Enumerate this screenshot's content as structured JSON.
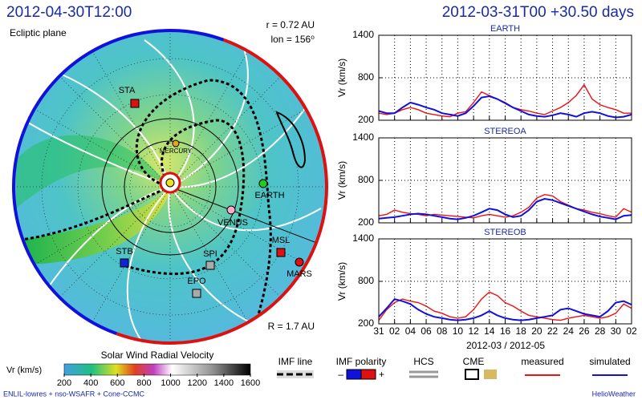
{
  "header": {
    "left_title": "2012-04-30T12:00",
    "right_title": "2012-03-31T00 +30.50 days"
  },
  "map": {
    "label": "Ecliptic plane",
    "radius": "r = 0.72 AU",
    "lon": "lon = 156⁰",
    "range": "R = 1.7 AU",
    "bodies": [
      {
        "label": "STA",
        "color": "#dd1111",
        "shape": "square"
      },
      {
        "label": "MERCURY",
        "color": "#f0a020",
        "shape": "circle"
      },
      {
        "label": "EARTH",
        "color": "#22cc22",
        "shape": "circle"
      },
      {
        "label": "VENUS",
        "color": "#ffaacc",
        "shape": "circle"
      },
      {
        "label": "MSL",
        "color": "#dd1111",
        "shape": "square"
      },
      {
        "label": "MARS",
        "color": "#dd1111",
        "shape": "circle"
      },
      {
        "label": "STB",
        "color": "#1122dd",
        "shape": "square"
      },
      {
        "label": "SPI",
        "color": "#aaaaaa",
        "shape": "square"
      },
      {
        "label": "EPO",
        "color": "#aaaaaa",
        "shape": "square"
      }
    ]
  },
  "chart_data": [
    {
      "type": "line",
      "title": "EARTH",
      "y_label": "Vr (km/s)",
      "x": [
        "2012-03-31",
        "2012-04-01",
        "2012-04-02",
        "2012-04-03",
        "2012-04-04",
        "2012-04-05",
        "2012-04-06",
        "2012-04-07",
        "2012-04-08",
        "2012-04-09",
        "2012-04-10",
        "2012-04-11",
        "2012-04-12",
        "2012-04-13",
        "2012-04-14",
        "2012-04-15",
        "2012-04-16",
        "2012-04-17",
        "2012-04-18",
        "2012-04-19",
        "2012-04-20",
        "2012-04-21",
        "2012-04-22",
        "2012-04-23",
        "2012-04-24",
        "2012-04-25",
        "2012-04-26",
        "2012-04-27",
        "2012-04-28",
        "2012-04-29",
        "2012-04-30",
        "2012-05-01",
        "2012-05-02"
      ],
      "xlim": [
        "2012-03-31",
        "2012-05-02"
      ],
      "xticks": [
        {
          "value": "2012-03-31",
          "label": "31"
        },
        {
          "value": "2012-04-02",
          "label": "02"
        },
        {
          "value": "2012-04-04",
          "label": "04"
        },
        {
          "value": "2012-04-06",
          "label": "06"
        },
        {
          "value": "2012-04-08",
          "label": "08"
        },
        {
          "value": "2012-04-10",
          "label": "10"
        },
        {
          "value": "2012-04-12",
          "label": "12"
        },
        {
          "value": "2012-04-14",
          "label": "14"
        },
        {
          "value": "2012-04-16",
          "label": "16"
        },
        {
          "value": "2012-04-18",
          "label": "18"
        },
        {
          "value": "2012-04-20",
          "label": "20"
        },
        {
          "value": "2012-04-22",
          "label": "22"
        },
        {
          "value": "2012-04-24",
          "label": "24"
        },
        {
          "value": "2012-04-26",
          "label": "26"
        },
        {
          "value": "2012-04-28",
          "label": "28"
        },
        {
          "value": "2012-04-30",
          "label": "30"
        },
        {
          "value": "2012-05-02",
          "label": "02"
        }
      ],
      "ylim": [
        200,
        1400
      ],
      "yticks": [
        200,
        800,
        1400
      ],
      "grid": true,
      "series": [
        {
          "name": "measured",
          "color": "#ee1111",
          "values": [
            300,
            280,
            300,
            350,
            380,
            350,
            300,
            280,
            260,
            250,
            300,
            320,
            450,
            600,
            550,
            500,
            450,
            380,
            350,
            330,
            300,
            280,
            330,
            380,
            450,
            550,
            700,
            500,
            420,
            380,
            350,
            300,
            300
          ]
        },
        {
          "name": "simulated",
          "color": "#1111dd",
          "values": [
            330,
            300,
            300,
            380,
            450,
            420,
            380,
            350,
            300,
            280,
            260,
            300,
            400,
            520,
            540,
            500,
            440,
            380,
            330,
            280,
            260,
            250,
            270,
            300,
            280,
            250,
            300,
            320,
            300,
            260,
            240,
            250,
            280
          ]
        }
      ]
    },
    {
      "type": "line",
      "title": "STEREOA",
      "y_label": "Vr (km/s)",
      "x": [
        "2012-03-31",
        "2012-04-01",
        "2012-04-02",
        "2012-04-03",
        "2012-04-04",
        "2012-04-05",
        "2012-04-06",
        "2012-04-07",
        "2012-04-08",
        "2012-04-09",
        "2012-04-10",
        "2012-04-11",
        "2012-04-12",
        "2012-04-13",
        "2012-04-14",
        "2012-04-15",
        "2012-04-16",
        "2012-04-17",
        "2012-04-18",
        "2012-04-19",
        "2012-04-20",
        "2012-04-21",
        "2012-04-22",
        "2012-04-23",
        "2012-04-24",
        "2012-04-25",
        "2012-04-26",
        "2012-04-27",
        "2012-04-28",
        "2012-04-29",
        "2012-04-30",
        "2012-05-01",
        "2012-05-02"
      ],
      "xlim": [
        "2012-03-31",
        "2012-05-02"
      ],
      "xticks": [
        {
          "value": "2012-03-31",
          "label": "31"
        },
        {
          "value": "2012-04-02",
          "label": "02"
        },
        {
          "value": "2012-04-04",
          "label": "04"
        },
        {
          "value": "2012-04-06",
          "label": "06"
        },
        {
          "value": "2012-04-08",
          "label": "08"
        },
        {
          "value": "2012-04-10",
          "label": "10"
        },
        {
          "value": "2012-04-12",
          "label": "12"
        },
        {
          "value": "2012-04-14",
          "label": "14"
        },
        {
          "value": "2012-04-16",
          "label": "16"
        },
        {
          "value": "2012-04-18",
          "label": "18"
        },
        {
          "value": "2012-04-20",
          "label": "20"
        },
        {
          "value": "2012-04-22",
          "label": "22"
        },
        {
          "value": "2012-04-24",
          "label": "24"
        },
        {
          "value": "2012-04-26",
          "label": "26"
        },
        {
          "value": "2012-04-28",
          "label": "28"
        },
        {
          "value": "2012-04-30",
          "label": "30"
        },
        {
          "value": "2012-05-02",
          "label": "02"
        }
      ],
      "ylim": [
        200,
        1400
      ],
      "yticks": [
        200,
        800,
        1400
      ],
      "grid": true,
      "series": [
        {
          "name": "measured",
          "color": "#ee1111",
          "values": [
            300,
            320,
            380,
            350,
            330,
            320,
            300,
            320,
            310,
            300,
            290,
            280,
            270,
            300,
            320,
            300,
            280,
            300,
            350,
            420,
            550,
            600,
            580,
            500,
            450,
            400,
            380,
            350,
            330,
            300,
            280,
            400,
            350
          ]
        },
        {
          "name": "simulated",
          "color": "#1111dd",
          "values": [
            260,
            270,
            280,
            300,
            320,
            330,
            320,
            300,
            280,
            260,
            250,
            270,
            300,
            350,
            400,
            380,
            320,
            280,
            300,
            380,
            500,
            540,
            520,
            480,
            440,
            400,
            360,
            320,
            290,
            270,
            250,
            300,
            310
          ]
        }
      ]
    },
    {
      "type": "line",
      "title": "STEREOB",
      "y_label": "Vr (km/s)",
      "x": [
        "2012-03-31",
        "2012-04-01",
        "2012-04-02",
        "2012-04-03",
        "2012-04-04",
        "2012-04-05",
        "2012-04-06",
        "2012-04-07",
        "2012-04-08",
        "2012-04-09",
        "2012-04-10",
        "2012-04-11",
        "2012-04-12",
        "2012-04-13",
        "2012-04-14",
        "2012-04-15",
        "2012-04-16",
        "2012-04-17",
        "2012-04-18",
        "2012-04-19",
        "2012-04-20",
        "2012-04-21",
        "2012-04-22",
        "2012-04-23",
        "2012-04-24",
        "2012-04-25",
        "2012-04-26",
        "2012-04-27",
        "2012-04-28",
        "2012-04-29",
        "2012-04-30",
        "2012-05-01",
        "2012-05-02"
      ],
      "xlim": [
        "2012-03-31",
        "2012-05-02"
      ],
      "xticks": [
        {
          "value": "2012-03-31",
          "label": "31"
        },
        {
          "value": "2012-04-02",
          "label": "02"
        },
        {
          "value": "2012-04-04",
          "label": "04"
        },
        {
          "value": "2012-04-06",
          "label": "06"
        },
        {
          "value": "2012-04-08",
          "label": "08"
        },
        {
          "value": "2012-04-10",
          "label": "10"
        },
        {
          "value": "2012-04-12",
          "label": "12"
        },
        {
          "value": "2012-04-14",
          "label": "14"
        },
        {
          "value": "2012-04-16",
          "label": "16"
        },
        {
          "value": "2012-04-18",
          "label": "18"
        },
        {
          "value": "2012-04-20",
          "label": "20"
        },
        {
          "value": "2012-04-22",
          "label": "22"
        },
        {
          "value": "2012-04-24",
          "label": "24"
        },
        {
          "value": "2012-04-26",
          "label": "26"
        },
        {
          "value": "2012-04-28",
          "label": "28"
        },
        {
          "value": "2012-04-30",
          "label": "30"
        },
        {
          "value": "2012-05-02",
          "label": "02"
        }
      ],
      "ylim": [
        200,
        1400
      ],
      "yticks": [
        200,
        800,
        1400
      ],
      "grid": true,
      "series": [
        {
          "name": "measured",
          "color": "#ee1111",
          "values": [
            250,
            400,
            500,
            550,
            520,
            500,
            450,
            380,
            350,
            300,
            280,
            300,
            400,
            550,
            650,
            600,
            500,
            450,
            380,
            320,
            300,
            280,
            260,
            250,
            280,
            300,
            320,
            300,
            280,
            300,
            350,
            480,
            420
          ]
        },
        {
          "name": "simulated",
          "color": "#1111dd",
          "values": [
            300,
            420,
            550,
            520,
            480,
            400,
            340,
            300,
            280,
            260,
            250,
            260,
            280,
            320,
            380,
            320,
            280,
            260,
            250,
            260,
            280,
            300,
            320,
            400,
            420,
            380,
            340,
            320,
            300,
            380,
            500,
            520,
            470
          ]
        }
      ]
    }
  ],
  "x_axis_label": "2012-03 / 2012-05",
  "colorbar": {
    "title": "Solar Wind Radial Velocity",
    "label": "Vr (km/s)",
    "lim": [
      200,
      1600
    ],
    "ticks": [
      200,
      400,
      600,
      800,
      1000,
      1200,
      1400,
      1600
    ]
  },
  "legend": {
    "imf_line": "IMF line",
    "imf_polarity": "IMF polarity",
    "minus": "–",
    "plus": "+",
    "hcs": "HCS",
    "cme": "CME"
  },
  "footer": {
    "left": "ENLIL-lowres + nso-WSAFR + Cone-CCMC",
    "right": "HelioWeather"
  }
}
